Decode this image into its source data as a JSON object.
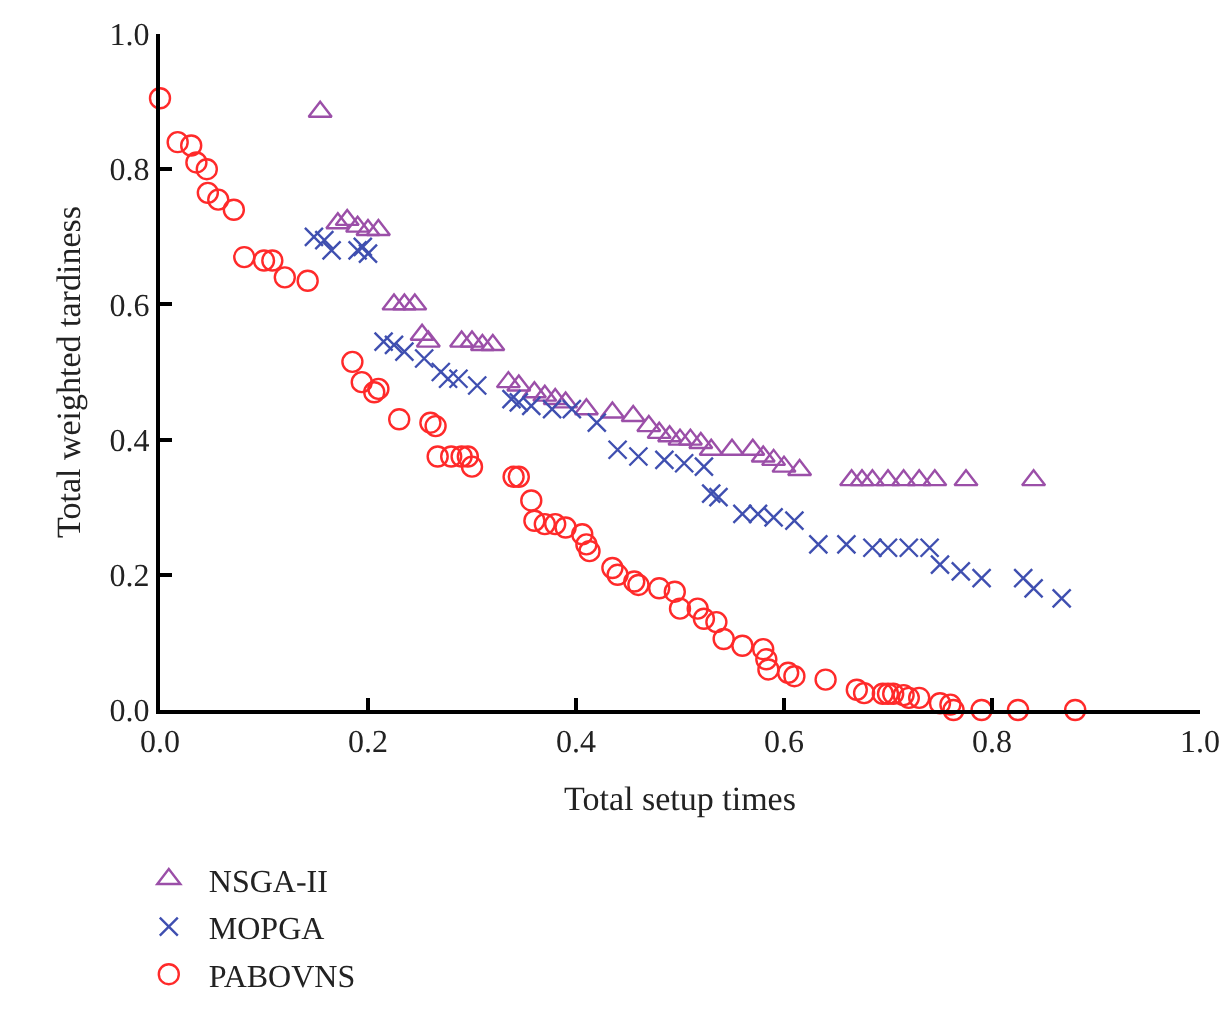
{
  "chart_data": {
    "type": "scatter",
    "xlabel": "Total setup times",
    "ylabel": "Total weighted tardiness",
    "xlim": [
      0,
      1
    ],
    "ylim": [
      0,
      1
    ],
    "xticks": [
      {
        "value": 0,
        "label": "0.0"
      },
      {
        "value": 0.2,
        "label": "0.2"
      },
      {
        "value": 0.4,
        "label": "0.4"
      },
      {
        "value": 0.6,
        "label": "0.6"
      },
      {
        "value": 0.8,
        "label": "0.8"
      },
      {
        "value": 1,
        "label": "1.0"
      }
    ],
    "yticks": [
      {
        "value": 0,
        "label": "0.0"
      },
      {
        "value": 0.2,
        "label": "0.2"
      },
      {
        "value": 0.4,
        "label": "0.4"
      },
      {
        "value": 0.6,
        "label": "0.6"
      },
      {
        "value": 0.8,
        "label": "0.8"
      },
      {
        "value": 1,
        "label": "1.0"
      }
    ],
    "grid": false,
    "legend": "bottom left",
    "series": [
      {
        "name": "NSGA-II",
        "color": "#9b4fa8",
        "marker": "triangle",
        "x": [
          0.154,
          0.171,
          0.18,
          0.19,
          0.2,
          0.21,
          0.225,
          0.235,
          0.245,
          0.252,
          0.258,
          0.29,
          0.3,
          0.31,
          0.32,
          0.335,
          0.345,
          0.36,
          0.37,
          0.38,
          0.39,
          0.41,
          0.435,
          0.455,
          0.47,
          0.48,
          0.49,
          0.5,
          0.51,
          0.52,
          0.53,
          0.55,
          0.57,
          0.58,
          0.59,
          0.6,
          0.615,
          0.665,
          0.675,
          0.685,
          0.7,
          0.715,
          0.73,
          0.745,
          0.775,
          0.84
        ],
        "values": [
          0.885,
          0.72,
          0.725,
          0.715,
          0.71,
          0.71,
          0.6,
          0.6,
          0.6,
          0.555,
          0.545,
          0.545,
          0.545,
          0.54,
          0.54,
          0.485,
          0.48,
          0.47,
          0.465,
          0.46,
          0.455,
          0.445,
          0.44,
          0.435,
          0.42,
          0.41,
          0.405,
          0.4,
          0.4,
          0.395,
          0.385,
          0.385,
          0.385,
          0.375,
          0.37,
          0.36,
          0.355,
          0.34,
          0.34,
          0.34,
          0.34,
          0.34,
          0.34,
          0.34,
          0.34,
          0.34
        ]
      },
      {
        "name": "MOPGA",
        "color": "#3f4fb0",
        "marker": "cross",
        "x": [
          0.148,
          0.158,
          0.165,
          0.19,
          0.195,
          0.2,
          0.215,
          0.225,
          0.235,
          0.254,
          0.27,
          0.277,
          0.287,
          0.305,
          0.338,
          0.345,
          0.357,
          0.377,
          0.396,
          0.42,
          0.44,
          0.46,
          0.485,
          0.504,
          0.523,
          0.53,
          0.537,
          0.56,
          0.575,
          0.59,
          0.61,
          0.633,
          0.66,
          0.685,
          0.7,
          0.72,
          0.74,
          0.75,
          0.77,
          0.79,
          0.83,
          0.84,
          0.867
        ],
        "values": [
          0.7,
          0.695,
          0.68,
          0.68,
          0.685,
          0.675,
          0.545,
          0.54,
          0.53,
          0.52,
          0.5,
          0.49,
          0.49,
          0.48,
          0.46,
          0.455,
          0.45,
          0.445,
          0.445,
          0.425,
          0.385,
          0.375,
          0.37,
          0.365,
          0.36,
          0.32,
          0.315,
          0.29,
          0.29,
          0.285,
          0.28,
          0.245,
          0.245,
          0.24,
          0.24,
          0.24,
          0.24,
          0.215,
          0.205,
          0.195,
          0.195,
          0.18,
          0.165
        ]
      },
      {
        "name": "PABOVNS",
        "color": "#ff2a2a",
        "marker": "circle",
        "x": [
          0,
          0.017,
          0.03,
          0.035,
          0.045,
          0.046,
          0.056,
          0.071,
          0.081,
          0.1,
          0.108,
          0.12,
          0.142,
          0.185,
          0.194,
          0.206,
          0.21,
          0.23,
          0.26,
          0.265,
          0.267,
          0.28,
          0.29,
          0.296,
          0.3,
          0.34,
          0.345,
          0.357,
          0.36,
          0.37,
          0.38,
          0.39,
          0.406,
          0.41,
          0.413,
          0.435,
          0.44,
          0.456,
          0.46,
          0.48,
          0.495,
          0.5,
          0.517,
          0.523,
          0.535,
          0.542,
          0.56,
          0.58,
          0.583,
          0.585,
          0.604,
          0.61,
          0.64,
          0.67,
          0.677,
          0.695,
          0.7,
          0.705,
          0.715,
          0.72,
          0.73,
          0.75,
          0.76,
          0.763,
          0.79,
          0.825,
          0.88
        ],
        "values": [
          0.905,
          0.84,
          0.835,
          0.81,
          0.8,
          0.765,
          0.755,
          0.74,
          0.67,
          0.665,
          0.665,
          0.64,
          0.635,
          0.515,
          0.485,
          0.47,
          0.475,
          0.43,
          0.425,
          0.42,
          0.375,
          0.375,
          0.375,
          0.375,
          0.36,
          0.345,
          0.345,
          0.31,
          0.28,
          0.275,
          0.275,
          0.27,
          0.26,
          0.245,
          0.235,
          0.21,
          0.2,
          0.19,
          0.185,
          0.18,
          0.175,
          0.15,
          0.15,
          0.135,
          0.13,
          0.105,
          0.095,
          0.09,
          0.075,
          0.06,
          0.055,
          0.05,
          0.045,
          0.03,
          0.025,
          0.024,
          0.024,
          0.024,
          0.022,
          0.018,
          0.018,
          0.01,
          0.008,
          0,
          0,
          0,
          0
        ]
      }
    ]
  }
}
